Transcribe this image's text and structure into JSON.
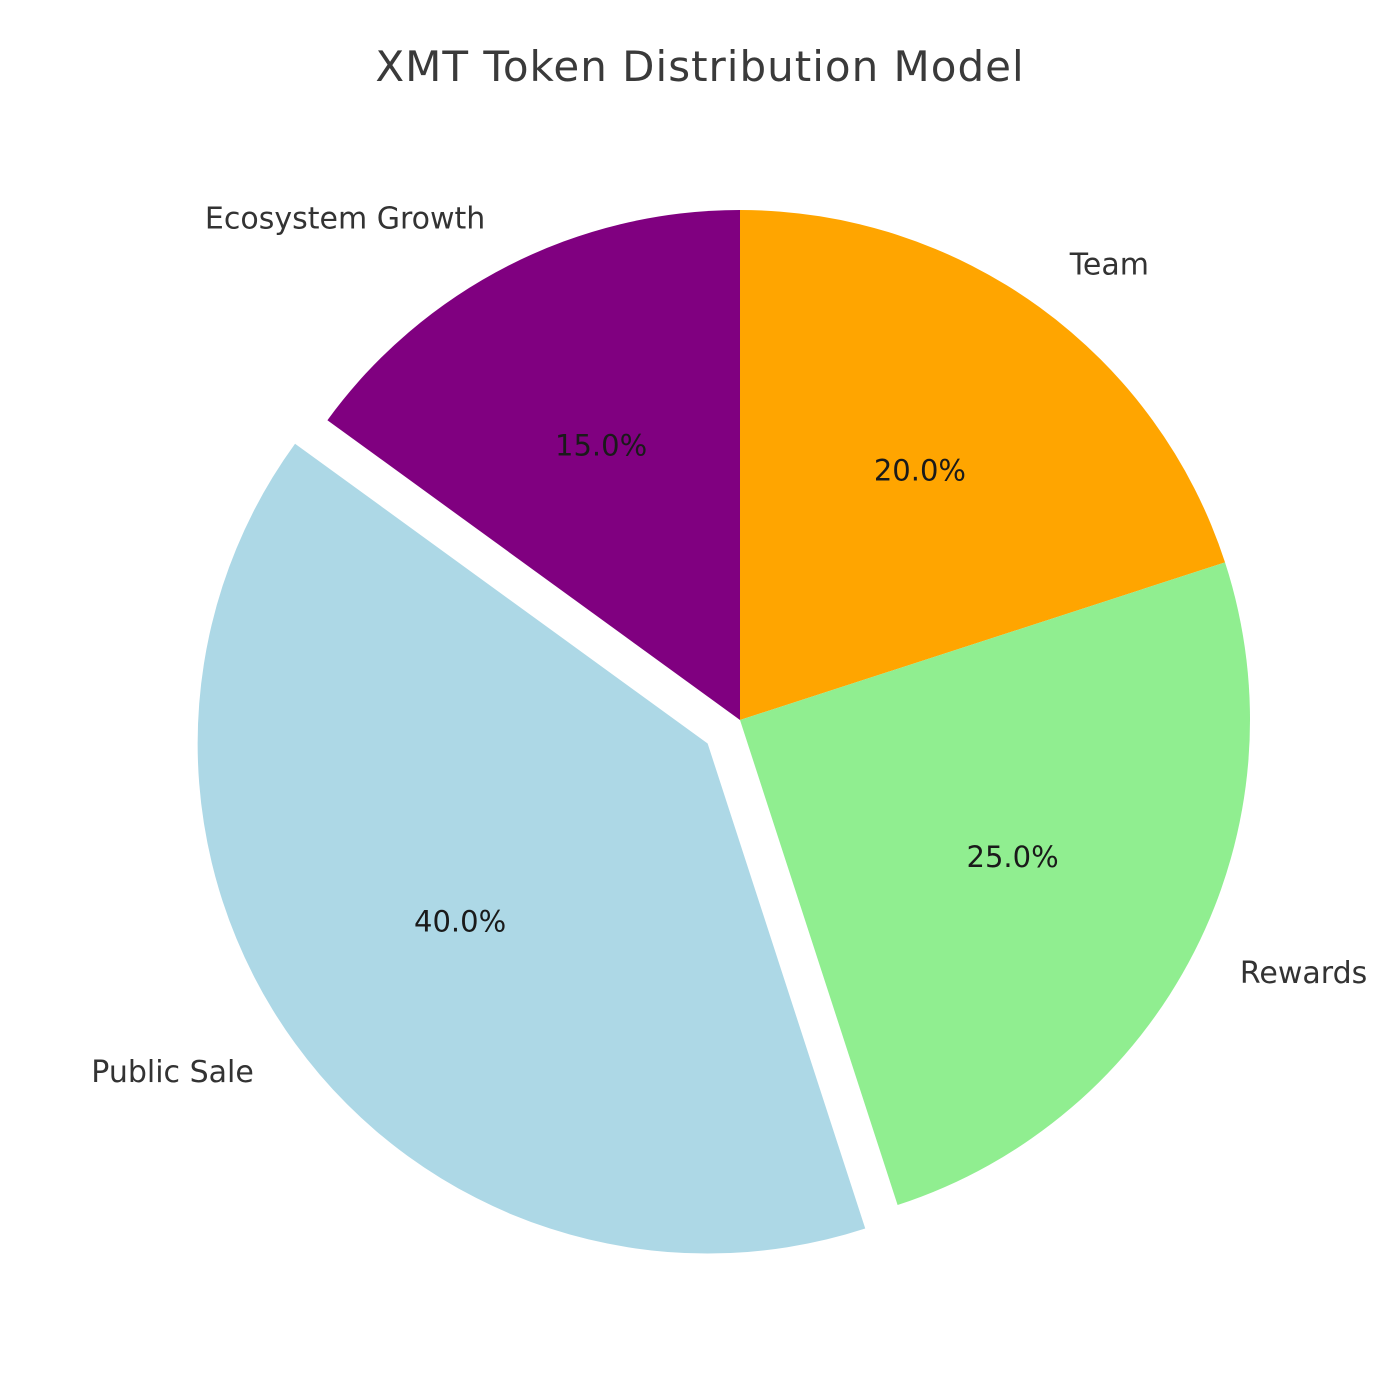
{
  "chart_data": {
    "type": "pie",
    "title": "XMT Token Distribution Model",
    "slices": [
      {
        "label": "Team",
        "value": 20.0,
        "pct_label": "20.0%",
        "color": "#FFA500",
        "explode": false
      },
      {
        "label": "Rewards",
        "value": 25.0,
        "pct_label": "25.0%",
        "color": "#90EE90",
        "explode": false
      },
      {
        "label": "Public Sale",
        "value": 40.0,
        "pct_label": "40.0%",
        "color": "#ADD8E6",
        "explode": true
      },
      {
        "label": "Ecosystem Growth",
        "value": 15.0,
        "pct_label": "15.0%",
        "color": "#800080",
        "explode": false
      }
    ],
    "start_angle": 90,
    "direction": "clockwise",
    "legend": "none",
    "background": "#FFFFFF",
    "layout": {
      "center": [
        740,
        720
      ],
      "radius": 510,
      "explode_distance": 40,
      "pct_distance": 0.6,
      "label_distance": 1.1
    }
  }
}
